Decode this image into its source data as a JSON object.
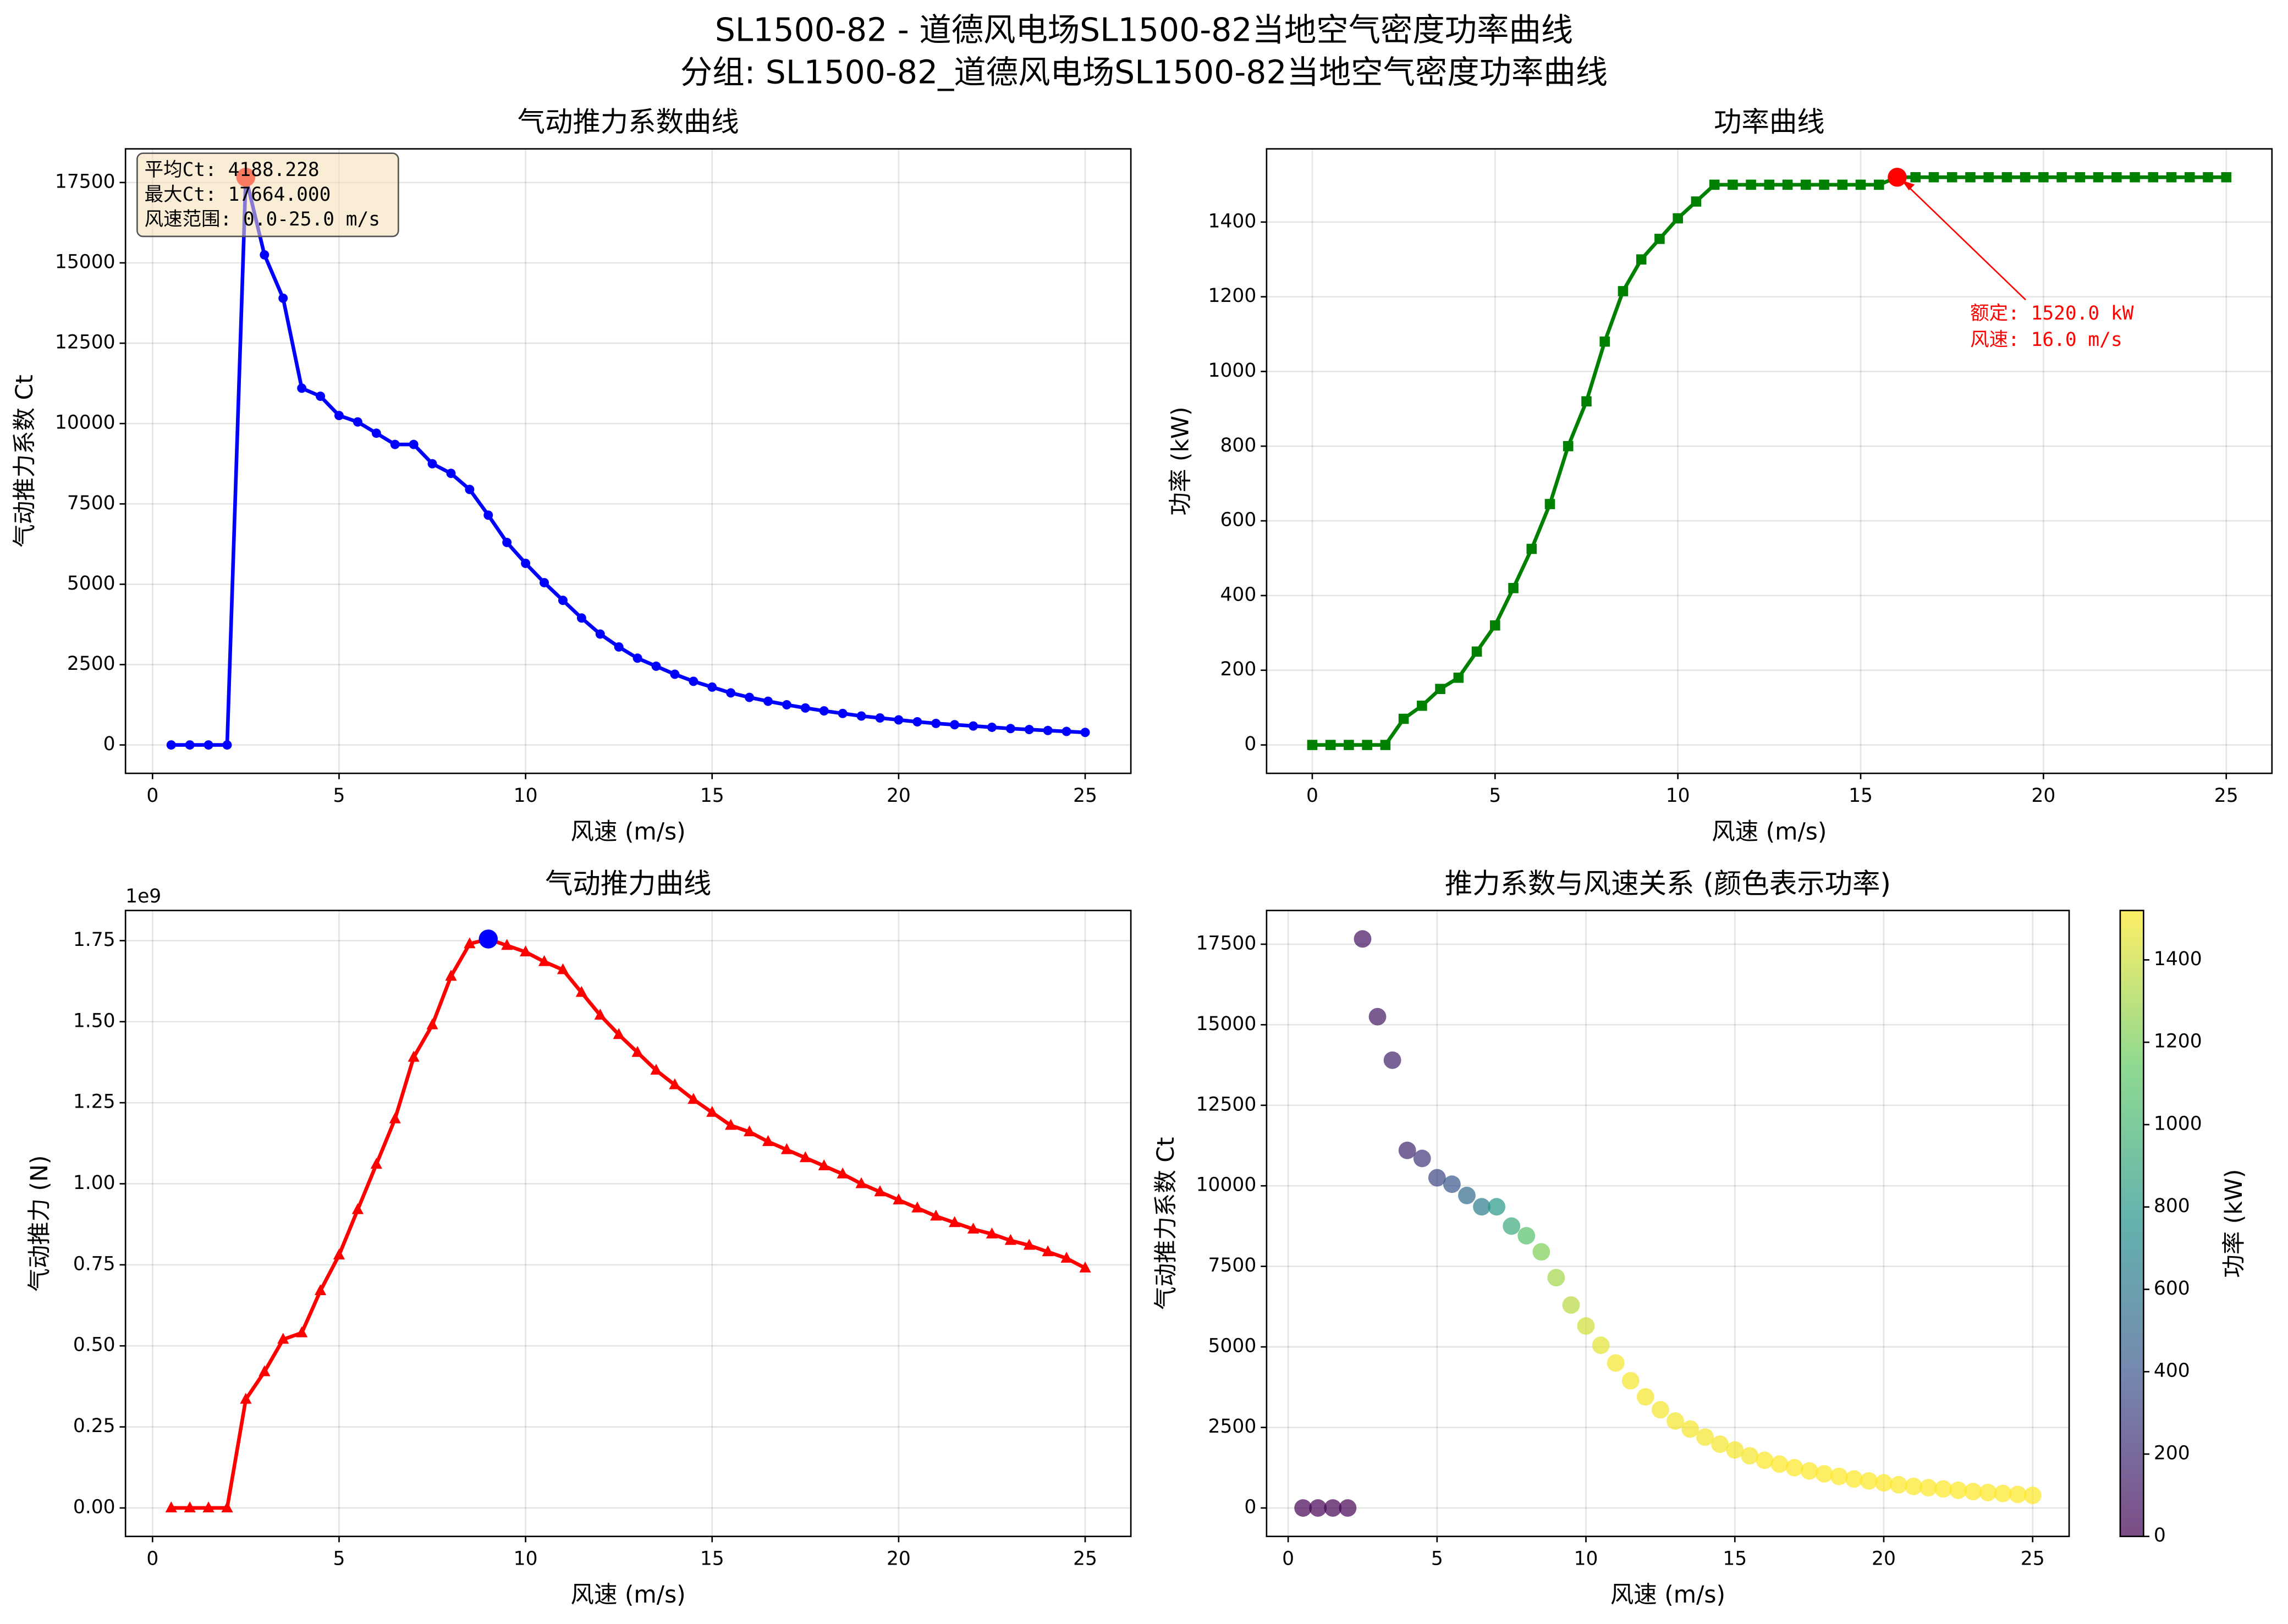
{
  "figure_title": [
    "SL1500-82 - 道德风电场SL1500-82当地空气密度功率曲线",
    "分组: SL1500-82_道德风电场SL1500-82当地空气密度功率曲线"
  ],
  "chart_data": [
    {
      "type": "line",
      "title": "气动推力系数曲线",
      "xlabel": "风速 (m/s)",
      "ylabel": "气动推力系数 Ct",
      "grid": true,
      "x": [
        0.5,
        1,
        1.5,
        2,
        2.5,
        3,
        3.5,
        4,
        4.5,
        5,
        5.5,
        6,
        6.5,
        7,
        7.5,
        8,
        8.5,
        9,
        9.5,
        10,
        10.5,
        11,
        11.5,
        12,
        12.5,
        13,
        13.5,
        14,
        14.5,
        15,
        15.5,
        16,
        16.5,
        17,
        17.5,
        18,
        18.5,
        19,
        19.5,
        20,
        20.5,
        21,
        21.5,
        22,
        22.5,
        23,
        23.5,
        24,
        24.5,
        25
      ],
      "series": [
        {
          "color": "#0000ff",
          "marker": "circle",
          "values": [
            0,
            0,
            0,
            0,
            17664,
            15250,
            13900,
            11100,
            10850,
            10250,
            10050,
            9700,
            9350,
            9350,
            8750,
            8450,
            7950,
            7150,
            6300,
            5650,
            5050,
            4500,
            3950,
            3450,
            3050,
            2700,
            2450,
            2200,
            1980,
            1800,
            1620,
            1480,
            1360,
            1250,
            1150,
            1060,
            980,
            900,
            840,
            780,
            720,
            670,
            630,
            590,
            550,
            510,
            480,
            450,
            420,
            390
          ]
        }
      ],
      "xlim": [
        -0.725,
        26.225
      ],
      "xticks": [
        0,
        5,
        10,
        15,
        20,
        25
      ],
      "ylim": [
        -883,
        18547
      ],
      "yticks": [
        0,
        2500,
        5000,
        7500,
        10000,
        12500,
        15000,
        17500
      ],
      "highlight": {
        "x": 2.5,
        "y": 17664,
        "color": "#ff0000"
      },
      "stats_box": [
        "平均Ct: 4188.228",
        "最大Ct: 17664.000",
        "风速范围: 0.0-25.0 m/s"
      ]
    },
    {
      "type": "line",
      "title": "功率曲线",
      "xlabel": "风速 (m/s)",
      "ylabel": "功率 (kW)",
      "grid": true,
      "x": [
        0,
        0.5,
        1,
        1.5,
        2,
        2.5,
        3,
        3.5,
        4,
        4.5,
        5,
        5.5,
        6,
        6.5,
        7,
        7.5,
        8,
        8.5,
        9,
        9.5,
        10,
        10.5,
        11,
        11.5,
        12,
        12.5,
        13,
        13.5,
        14,
        14.5,
        15,
        15.5,
        16,
        16.5,
        17,
        17.5,
        18,
        18.5,
        19,
        19.5,
        20,
        20.5,
        21,
        21.5,
        22,
        22.5,
        23,
        23.5,
        24,
        24.5,
        25
      ],
      "series": [
        {
          "color": "#008000",
          "marker": "square",
          "values": [
            0,
            0,
            0,
            0,
            0,
            70,
            105,
            150,
            180,
            250,
            320,
            420,
            525,
            645,
            800,
            920,
            1080,
            1215,
            1300,
            1355,
            1410,
            1455,
            1500,
            1500,
            1500,
            1500,
            1500,
            1500,
            1500,
            1500,
            1500,
            1500,
            1520,
            1520,
            1520,
            1520,
            1520,
            1520,
            1520,
            1520,
            1520,
            1520,
            1520,
            1520,
            1520,
            1520,
            1520,
            1520,
            1520,
            1520,
            1520
          ]
        }
      ],
      "xlim": [
        -1.25,
        26.25
      ],
      "xticks": [
        0,
        5,
        10,
        15,
        20,
        25
      ],
      "ylim": [
        -76,
        1596
      ],
      "yticks": [
        0,
        200,
        400,
        600,
        800,
        1000,
        1200,
        1400
      ],
      "highlight": {
        "x": 16,
        "y": 1520,
        "color": "#ff0000"
      },
      "annotation": {
        "text": [
          "额定: 1520.0 kW",
          "风速: 16.0 m/s"
        ],
        "color": "#ff0000"
      }
    },
    {
      "type": "line",
      "title": "气动推力曲线",
      "xlabel": "风速 (m/s)",
      "ylabel": "气动推力 (N)",
      "grid": true,
      "offset_label": "1e9",
      "x": [
        0.5,
        1,
        1.5,
        2,
        2.5,
        3,
        3.5,
        4,
        4.5,
        5,
        5.5,
        6,
        6.5,
        7,
        7.5,
        8,
        8.5,
        9,
        9.5,
        10,
        10.5,
        11,
        11.5,
        12,
        12.5,
        13,
        13.5,
        14,
        14.5,
        15,
        15.5,
        16,
        16.5,
        17,
        17.5,
        18,
        18.5,
        19,
        19.5,
        20,
        20.5,
        21,
        21.5,
        22,
        22.5,
        23,
        23.5,
        24,
        24.5,
        25
      ],
      "series": [
        {
          "color": "#ff0000",
          "marker": "triangle",
          "values": [
            0,
            0,
            0,
            0,
            0.335,
            0.42,
            0.52,
            0.54,
            0.67,
            0.78,
            0.92,
            1.06,
            1.2,
            1.39,
            1.49,
            1.64,
            1.74,
            1.755,
            1.735,
            1.715,
            1.685,
            1.66,
            1.59,
            1.52,
            1.46,
            1.405,
            1.35,
            1.305,
            1.26,
            1.22,
            1.18,
            1.16,
            1.13,
            1.105,
            1.08,
            1.055,
            1.03,
            1.0,
            0.975,
            0.95,
            0.925,
            0.9,
            0.88,
            0.86,
            0.845,
            0.825,
            0.81,
            0.79,
            0.77,
            0.74
          ]
        }
      ],
      "xlim": [
        -0.725,
        26.225
      ],
      "xticks": [
        0,
        5,
        10,
        15,
        20,
        25
      ],
      "ylim": [
        -0.0878,
        1.843
      ],
      "yticks": [
        {
          "value": 0,
          "label": "0.00"
        },
        {
          "value": 0.25,
          "label": "0.25"
        },
        {
          "value": 0.5,
          "label": "0.50"
        },
        {
          "value": 0.75,
          "label": "0.75"
        },
        {
          "value": 1,
          "label": "1.00"
        },
        {
          "value": 1.25,
          "label": "1.25"
        },
        {
          "value": 1.5,
          "label": "1.50"
        },
        {
          "value": 1.75,
          "label": "1.75"
        }
      ],
      "highlight": {
        "x": 9,
        "y": 1.755,
        "color": "#0000ff"
      }
    },
    {
      "type": "scatter",
      "title": "推力系数与风速关系 (颜色表示功率)",
      "xlabel": "风速 (m/s)",
      "ylabel": "气动推力系数 Ct",
      "grid": true,
      "x": [
        0.5,
        1,
        1.5,
        2,
        2.5,
        3,
        3.5,
        4,
        4.5,
        5,
        5.5,
        6,
        6.5,
        7,
        7.5,
        8,
        8.5,
        9,
        9.5,
        10,
        10.5,
        11,
        11.5,
        12,
        12.5,
        13,
        13.5,
        14,
        14.5,
        15,
        15.5,
        16,
        16.5,
        17,
        17.5,
        18,
        18.5,
        19,
        19.5,
        20,
        20.5,
        21,
        21.5,
        22,
        22.5,
        23,
        23.5,
        24,
        24.5,
        25
      ],
      "values": [
        0,
        0,
        0,
        0,
        17664,
        15250,
        13900,
        11100,
        10850,
        10250,
        10050,
        9700,
        9350,
        9350,
        8750,
        8450,
        7950,
        7150,
        6300,
        5650,
        5050,
        4500,
        3950,
        3450,
        3050,
        2700,
        2450,
        2200,
        1980,
        1800,
        1620,
        1480,
        1360,
        1250,
        1150,
        1060,
        980,
        900,
        840,
        780,
        720,
        670,
        630,
        590,
        550,
        510,
        480,
        450,
        420,
        390
      ],
      "c": [
        0,
        0,
        0,
        0,
        70,
        105,
        150,
        180,
        250,
        320,
        420,
        525,
        645,
        800,
        920,
        1080,
        1215,
        1300,
        1355,
        1410,
        1455,
        1500,
        1500,
        1500,
        1500,
        1500,
        1500,
        1500,
        1500,
        1500,
        1500,
        1520,
        1520,
        1520,
        1520,
        1520,
        1520,
        1520,
        1520,
        1520,
        1520,
        1520,
        1520,
        1520,
        1520,
        1520,
        1520,
        1520,
        1520,
        1520
      ],
      "colormap": [
        "#440154",
        "#3b528b",
        "#21918c",
        "#5ec962",
        "#fde725"
      ],
      "clim": [
        0,
        1520
      ],
      "cticks": [
        0,
        200,
        400,
        600,
        800,
        1000,
        1200,
        1400
      ],
      "clabel": "功率 (kW)",
      "xlim": [
        -0.725,
        26.225
      ],
      "xticks": [
        0,
        5,
        10,
        15,
        20,
        25
      ],
      "ylim": [
        -883,
        18547
      ],
      "yticks": [
        0,
        2500,
        5000,
        7500,
        10000,
        12500,
        15000,
        17500
      ]
    }
  ]
}
